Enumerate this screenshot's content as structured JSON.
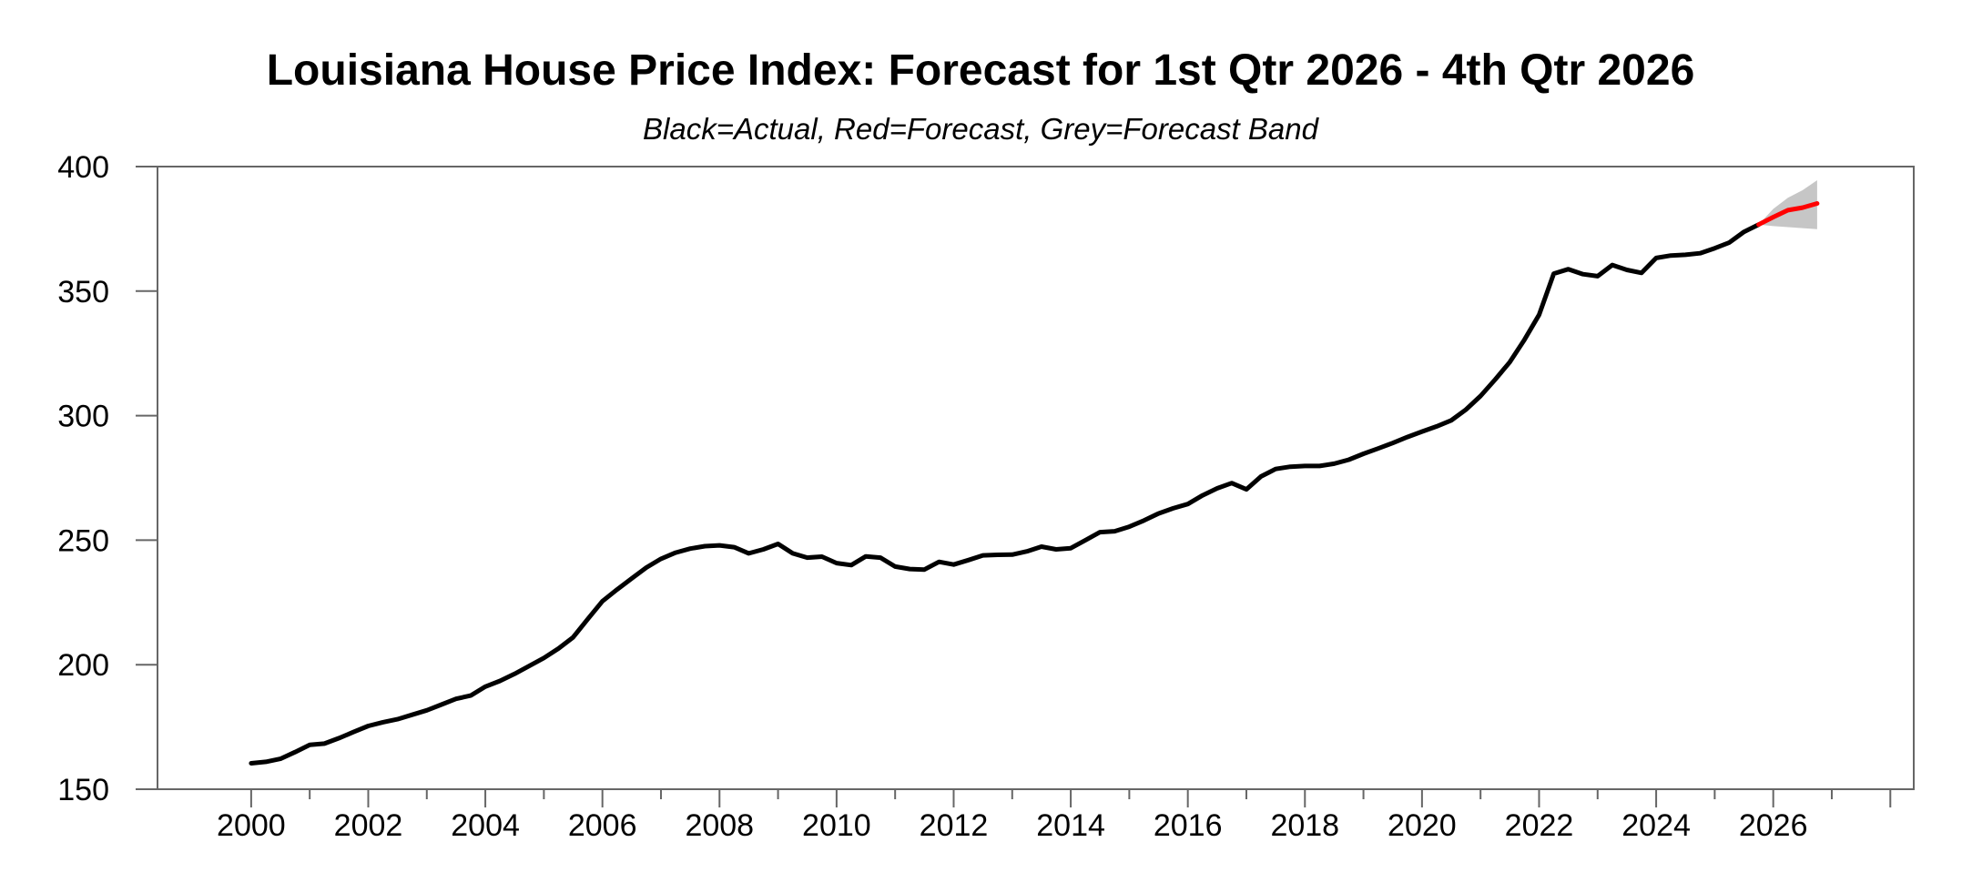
{
  "page": {
    "background_color": "#ffffff"
  },
  "chart_data": {
    "type": "line",
    "title": "Louisiana House Price Index: Forecast for 1st Qtr 2026 - 4th Qtr 2026",
    "subtitle": "Black=Actual, Red=Forecast, Grey=Forecast Band",
    "xlabel": "",
    "ylabel": "",
    "grid": false,
    "legend_position": "none",
    "xlim": [
      1998.4,
      2028.4
    ],
    "ylim": [
      150,
      400
    ],
    "y_ticks": [
      150,
      200,
      250,
      300,
      350,
      400
    ],
    "x_ticks": [
      {
        "v": 2000,
        "label": "2000"
      },
      {
        "v": 2002,
        "label": "2002"
      },
      {
        "v": 2004,
        "label": "2004"
      },
      {
        "v": 2006,
        "label": "2006"
      },
      {
        "v": 2008,
        "label": "2008"
      },
      {
        "v": 2010,
        "label": "2010"
      },
      {
        "v": 2012,
        "label": "2012"
      },
      {
        "v": 2014,
        "label": "2014"
      },
      {
        "v": 2016,
        "label": "2016"
      },
      {
        "v": 2018,
        "label": "2018"
      },
      {
        "v": 2020,
        "label": "2020"
      },
      {
        "v": 2022,
        "label": "2022"
      },
      {
        "v": 2024,
        "label": "2024"
      },
      {
        "v": 2026,
        "label": "2026"
      },
      {
        "v": 2028,
        "label": ""
      }
    ],
    "x_minor_ticks": [
      2001,
      2003,
      2005,
      2007,
      2009,
      2011,
      2013,
      2015,
      2017,
      2019,
      2021,
      2023,
      2025,
      2027
    ],
    "colors": {
      "actual": "#000000",
      "forecast": "#ff0000",
      "band": "#c6c6c6",
      "frame": "#666666",
      "text": "#000000"
    },
    "series": [
      {
        "name": "Actual",
        "color": "#000000",
        "x_start": 2000.0,
        "x_step": 0.25,
        "values": [
          160.4,
          161.0,
          162.2,
          164.9,
          167.8,
          168.3,
          170.5,
          173.0,
          175.4,
          176.9,
          178.1,
          179.9,
          181.7,
          184.0,
          186.3,
          187.6,
          191.2,
          193.5,
          196.3,
          199.5,
          202.7,
          206.5,
          211.0,
          218.3,
          225.5,
          230.2,
          234.6,
          239.0,
          242.5,
          245.0,
          246.6,
          247.6,
          247.9,
          247.2,
          244.7,
          246.3,
          248.5,
          244.7,
          243.0,
          243.4,
          240.8,
          240.0,
          243.5,
          243.0,
          239.4,
          238.4,
          238.2,
          241.3,
          240.2,
          242.0,
          243.9,
          244.1,
          244.2,
          245.5,
          247.4,
          246.3,
          246.8,
          250.0,
          253.2,
          253.6,
          255.4,
          257.9,
          260.7,
          262.8,
          264.5,
          268.0,
          270.8,
          272.9,
          270.4,
          275.6,
          278.6,
          279.5,
          279.8,
          279.8,
          280.7,
          282.3,
          284.7,
          286.8,
          289.0,
          291.4,
          293.6,
          295.7,
          298.1,
          302.4,
          307.9,
          314.5,
          321.5,
          330.5,
          340.5,
          357.0,
          358.8,
          356.8,
          356.0,
          360.5,
          358.5,
          357.3,
          363.3,
          364.3,
          364.6,
          365.2,
          367.2,
          369.5,
          373.8,
          376.7
        ]
      },
      {
        "name": "Forecast",
        "color": "#ff0000",
        "x_start": 2026.0,
        "x_step": 0.25,
        "connects_from": {
          "x": 2025.75,
          "value": 376.7
        },
        "values": [
          379.7,
          382.5,
          383.5,
          385.2
        ]
      }
    ],
    "band": {
      "name": "Forecast Band",
      "color": "#c6c6c6",
      "x_start": 2026.0,
      "x_step": 0.25,
      "connects_from": {
        "x": 2025.75,
        "value": 376.7
      },
      "upper": [
        383.0,
        387.5,
        390.5,
        394.5
      ],
      "lower": [
        376.1,
        375.7,
        375.3,
        374.9
      ]
    }
  }
}
